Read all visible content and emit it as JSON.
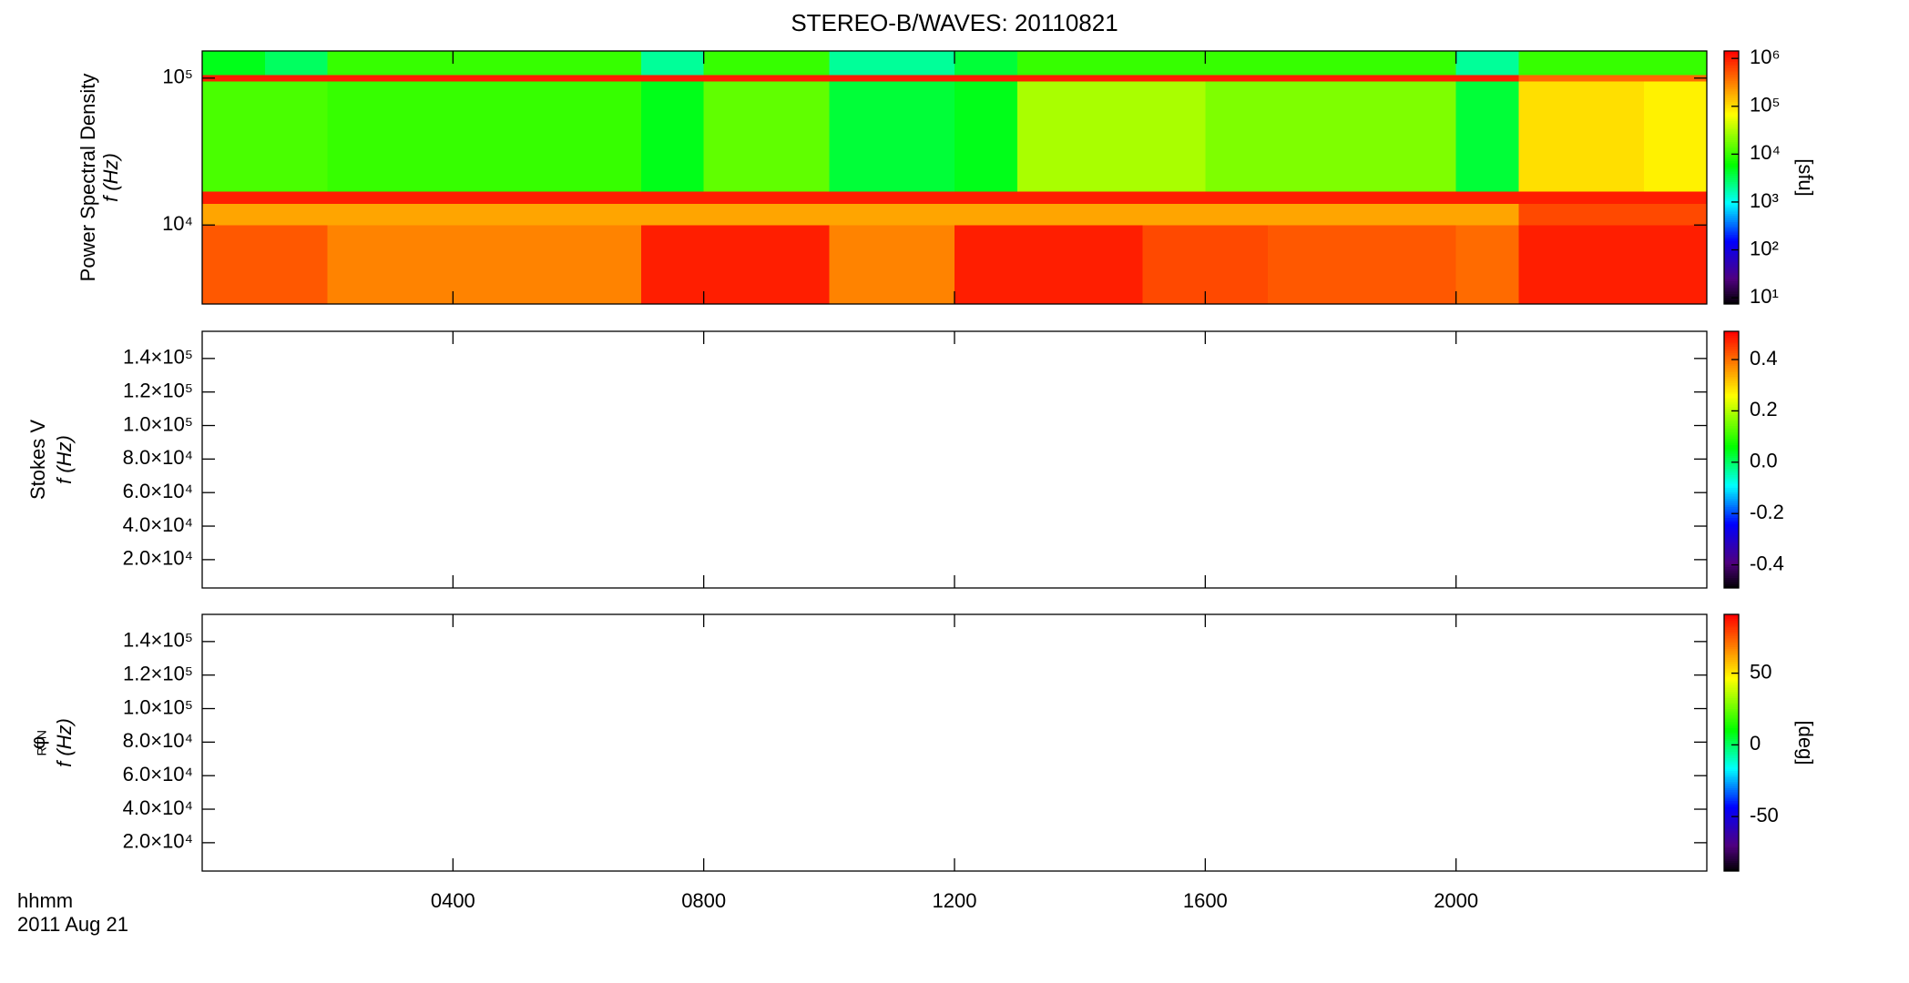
{
  "title": "STEREO-B/WAVES: 20110821",
  "time_label": "hhmm",
  "date_label": "2011 Aug 21",
  "chart_data": [
    {
      "type": "heatmap",
      "ylabel": [
        "Power Spectral Density",
        "f (Hz)"
      ],
      "ylog": true,
      "ylim": [
        2900,
        153000
      ],
      "yticks": [
        {
          "value": 10000,
          "label": "10⁴"
        },
        {
          "value": 100000,
          "label": "10⁵"
        }
      ],
      "xlim": [
        0,
        24
      ],
      "xticks": [
        4,
        8,
        12,
        16,
        20
      ],
      "x_edges": [
        0,
        1,
        2,
        3,
        4,
        5,
        6,
        7,
        8,
        9,
        10,
        11,
        12,
        13,
        14,
        15,
        16,
        17,
        18,
        19,
        20,
        21,
        22,
        23,
        24
      ],
      "y_edges": [
        2900,
        10000,
        14000,
        17000,
        95000,
        105000,
        153000
      ],
      "z": [
        [
          500000,
          500000,
          300000,
          300000,
          300000,
          300000,
          300000,
          1000000,
          1000000,
          1000000,
          300000,
          300000,
          1000000,
          1000000,
          1000000,
          600000,
          600000,
          500000,
          500000,
          500000,
          400000,
          1000000,
          1000000,
          1000000
        ],
        [
          200000,
          200000,
          200000,
          200000,
          200000,
          200000,
          200000,
          200000,
          200000,
          200000,
          200000,
          200000,
          200000,
          200000,
          200000,
          200000,
          200000,
          200000,
          200000,
          200000,
          200000,
          600000,
          600000,
          600000
        ],
        [
          1000000,
          1000000,
          1000000,
          1000000,
          1000000,
          1000000,
          1000000,
          1000000,
          1000000,
          1000000,
          1000000,
          1000000,
          1000000,
          1000000,
          1000000,
          1000000,
          1000000,
          1000000,
          1000000,
          1000000,
          1000000,
          1000000,
          1000000,
          1000000
        ],
        [
          12000,
          12000,
          10000,
          10000,
          10000,
          10000,
          10000,
          5000,
          15000,
          15000,
          4000,
          4000,
          5000,
          30000,
          30000,
          30000,
          20000,
          20000,
          20000,
          20000,
          4000,
          100000,
          100000,
          80000
        ],
        [
          1000000,
          1000000,
          1000000,
          1000000,
          1000000,
          1000000,
          1000000,
          1000000,
          1000000,
          1000000,
          1000000,
          1000000,
          1000000,
          1000000,
          1000000,
          1000000,
          1000000,
          1000000,
          1000000,
          1000000,
          1000000,
          400000,
          400000,
          400000
        ],
        [
          5000,
          3000,
          10000,
          10000,
          10000,
          10000,
          10000,
          2000,
          10000,
          10000,
          2000,
          2000,
          4000,
          10000,
          10000,
          10000,
          10000,
          10000,
          10000,
          10000,
          2000,
          10000,
          10000,
          10000
        ]
      ],
      "colormap": "rainbow",
      "zlog": true,
      "zlim": [
        7.4,
        1430000
      ],
      "zticks": [
        {
          "value": 10,
          "label": "10¹"
        },
        {
          "value": 100,
          "label": "10²"
        },
        {
          "value": 1000,
          "label": "10³"
        },
        {
          "value": 10000,
          "label": "10⁴"
        },
        {
          "value": 100000,
          "label": "10⁵"
        },
        {
          "value": 1000000,
          "label": "10⁶"
        }
      ],
      "zlabel": "[sfu]"
    },
    {
      "type": "heatmap",
      "ylabel": [
        "Stokes V",
        "f (Hz)"
      ],
      "ylim": [
        3100,
        156200
      ],
      "yticks": [
        {
          "value": 20000,
          "label": "2.0×10⁴"
        },
        {
          "value": 40000,
          "label": "4.0×10⁴"
        },
        {
          "value": 60000,
          "label": "6.0×10⁴"
        },
        {
          "value": 80000,
          "label": "8.0×10⁴"
        },
        {
          "value": 100000,
          "label": "1.0×10⁵"
        },
        {
          "value": 120000,
          "label": "1.2×10⁵"
        },
        {
          "value": 140000,
          "label": "1.4×10⁵"
        }
      ],
      "xlim": [
        0,
        24
      ],
      "xticks": [
        4,
        8,
        12,
        16,
        20
      ],
      "colormap": "rainbow",
      "zlim": [
        -0.49,
        0.51
      ],
      "zticks": [
        -0.4,
        -0.2,
        {
          "value": 0,
          "label": "0.0"
        },
        0.2,
        0.4
      ]
    },
    {
      "type": "heatmap",
      "ylabel": [
        "φ",
        "f (Hz)"
      ],
      "ylabel_subscript": "RTN",
      "ylim": [
        3100,
        156200
      ],
      "yticks": [
        {
          "value": 20000,
          "label": "2.0×10⁴"
        },
        {
          "value": 40000,
          "label": "4.0×10⁴"
        },
        {
          "value": 60000,
          "label": "6.0×10⁴"
        },
        {
          "value": 80000,
          "label": "8.0×10⁴"
        },
        {
          "value": 100000,
          "label": "1.0×10⁵"
        },
        {
          "value": 120000,
          "label": "1.2×10⁵"
        },
        {
          "value": 140000,
          "label": "1.4×10⁵"
        }
      ],
      "xlim": [
        0,
        24
      ],
      "xticks": [
        {
          "value": 4,
          "label": "0400"
        },
        {
          "value": 8,
          "label": "0800"
        },
        {
          "value": 12,
          "label": "1200"
        },
        {
          "value": 16,
          "label": "1600"
        },
        {
          "value": 20,
          "label": "2000"
        }
      ],
      "colormap": "rainbow",
      "zlim": [
        -88,
        91
      ],
      "zticks": [
        -50,
        0,
        50
      ],
      "zlabel": "[deg]"
    }
  ]
}
